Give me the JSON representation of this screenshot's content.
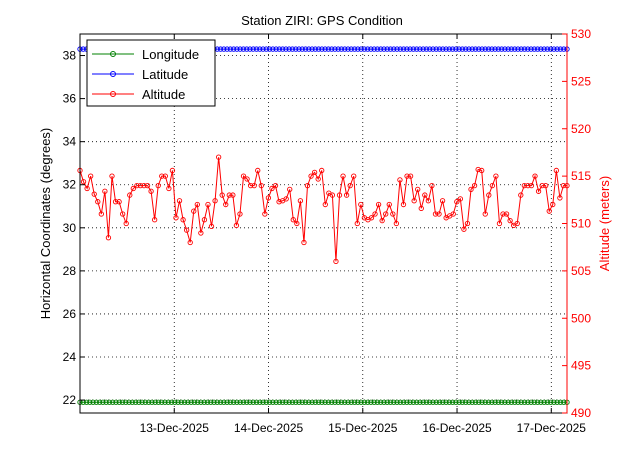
{
  "chart_data": {
    "type": "line",
    "title": "Station ZIRI: GPS Condition",
    "ylabel_left": "Horizontal Coordinates (degrees)",
    "ylabel_right": "Altitude (meters)",
    "xlim": [
      "2025-12-12T00:00",
      "2025-12-17T04:00"
    ],
    "xticks": [
      "13-Dec-2025",
      "14-Dec-2025",
      "15-Dec-2025",
      "16-Dec-2025",
      "17-Dec-2025"
    ],
    "ylim_left": [
      21.4,
      39.0
    ],
    "yticks_left": [
      "22",
      "24",
      "26",
      "28",
      "30",
      "32",
      "34",
      "36",
      "38"
    ],
    "ylim_right": [
      490,
      530
    ],
    "yticks_right": [
      "490",
      "495",
      "500",
      "505",
      "510",
      "515",
      "520",
      "525",
      "530"
    ],
    "grid": true,
    "legend_position": "top-left",
    "colors": {
      "longitude": "#008000",
      "latitude": "#0000ff",
      "altitude": "#ff0000",
      "right_axis": "#ff0000"
    },
    "series": [
      {
        "name": "Longitude",
        "axis": "left",
        "constant": 21.9,
        "count": 150
      },
      {
        "name": "Latitude",
        "axis": "left",
        "constant": 38.3,
        "count": 150
      },
      {
        "name": "Altitude",
        "axis": "right",
        "values": [
          515.6,
          514.4,
          513.7,
          515.0,
          513.1,
          512.3,
          511.0,
          513.4,
          508.5,
          515.0,
          512.3,
          512.3,
          511.0,
          510.0,
          513.0,
          513.7,
          514.0,
          514.0,
          514.0,
          514.0,
          513.4,
          510.4,
          514.0,
          515.0,
          515.0,
          513.7,
          515.6,
          510.6,
          512.4,
          510.4,
          509.3,
          508.0,
          511.3,
          512.0,
          509.0,
          510.4,
          512.0,
          509.7,
          512.4,
          517.0,
          513.0,
          512.0,
          513.0,
          513.0,
          509.8,
          511.0,
          515.0,
          514.7,
          514.0,
          514.0,
          515.6,
          514.0,
          511.0,
          512.7,
          513.7,
          514.0,
          512.3,
          512.4,
          512.6,
          513.6,
          510.4,
          510.0,
          512.4,
          508.0,
          514.0,
          515.0,
          515.4,
          514.7,
          515.6,
          512.0,
          513.2,
          513.0,
          506.0,
          513.0,
          515.0,
          513.0,
          514.0,
          515.0,
          510.0,
          512.0,
          510.6,
          510.4,
          510.6,
          511.0,
          512.0,
          510.3,
          511.0,
          512.0,
          511.0,
          510.0,
          514.6,
          512.0,
          515.0,
          515.0,
          512.4,
          513.6,
          511.6,
          513.0,
          512.4,
          514.0,
          511.0,
          511.0,
          512.4,
          510.6,
          510.8,
          511.0,
          512.3,
          512.6,
          509.4,
          510.0,
          513.6,
          514.0,
          515.7,
          515.6,
          511.0,
          513.0,
          514.0,
          515.0,
          510.0,
          511.0,
          511.0,
          510.3,
          509.8,
          510.0,
          513.0,
          514.0,
          514.0,
          514.0,
          515.0,
          513.4,
          514.0,
          514.0,
          511.3,
          512.0,
          515.6,
          512.7,
          514.0,
          514.0
        ]
      }
    ]
  }
}
